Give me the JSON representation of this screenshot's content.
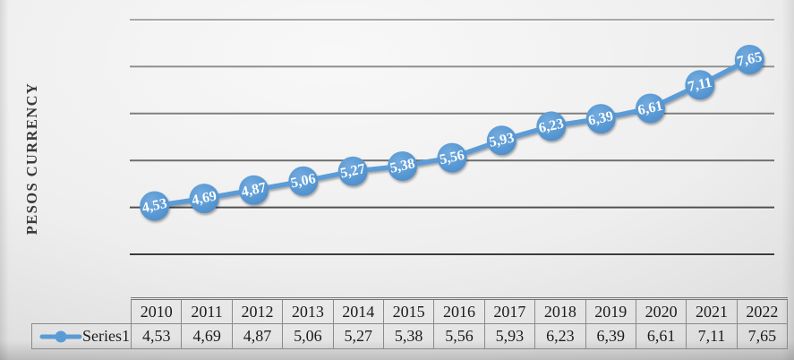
{
  "colors": {
    "accent": "#5B9BD5",
    "marker_label_text": "#ffffff",
    "axis_title_text": "#3a3a3a",
    "table_text": "#1c1c1c",
    "table_border": "#8a8a8a",
    "gridline_shades": [
      "#a8a8a8",
      "#8f8f8f",
      "#7f7f7f",
      "#6d6d6d",
      "#4f4f4f",
      "#3a3a3a"
    ]
  },
  "chart_data": {
    "type": "line",
    "title": "",
    "xlabel": "",
    "ylabel": "PESOS CURRENCY",
    "categories": [
      "2010",
      "2011",
      "2012",
      "2013",
      "2014",
      "2015",
      "2016",
      "2017",
      "2018",
      "2019",
      "2020",
      "2021",
      "2022"
    ],
    "series": [
      {
        "name": "Series1",
        "values": [
          4.53,
          4.69,
          4.87,
          5.06,
          5.27,
          5.38,
          5.56,
          5.93,
          6.23,
          6.39,
          6.61,
          7.11,
          7.65
        ],
        "labels": [
          "4,53",
          "4,69",
          "4,87",
          "5,06",
          "5,27",
          "5,38",
          "5,56",
          "5,93",
          "6,23",
          "6,39",
          "6,61",
          "7,11",
          "7,65"
        ]
      }
    ],
    "ylim": [
      3.5,
      8.5
    ],
    "gridline_step": 1.0,
    "grid": "horizontal-only",
    "y_tick_labels_visible": false,
    "data_labels": "inside-circular-markers",
    "marker": "circle",
    "legend_position": "bottom-table-left"
  }
}
